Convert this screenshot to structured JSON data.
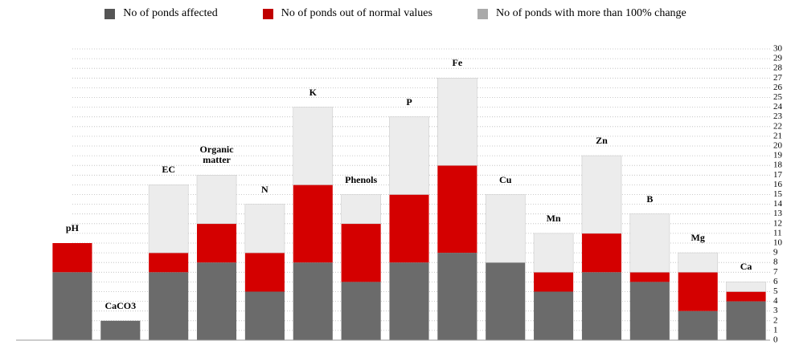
{
  "chart_data": {
    "type": "stacked_bar",
    "categories": [
      "pH",
      "CaCO3",
      "EC",
      "Organic matter",
      "N",
      "K",
      "Phenols",
      "P",
      "Fe",
      "Cu",
      "Mn",
      "Zn",
      "B",
      "Mg",
      "Ca"
    ],
    "series": [
      {
        "name": "No of ponds affected",
        "color": "#6b6b6b",
        "values": [
          7,
          2,
          7,
          8,
          5,
          8,
          6,
          8,
          9,
          8,
          5,
          7,
          6,
          3,
          4
        ]
      },
      {
        "name": "No of ponds out of normal values",
        "color": "#d40000",
        "values": [
          3,
          0,
          2,
          4,
          4,
          8,
          6,
          7,
          9,
          0,
          2,
          4,
          1,
          4,
          1
        ]
      },
      {
        "name": "No of ponds with more than 100% change",
        "color": "#ececec",
        "values": [
          0,
          0,
          7,
          5,
          5,
          8,
          3,
          8,
          9,
          7,
          4,
          8,
          6,
          2,
          1
        ]
      }
    ],
    "legend_colors": [
      "#555555",
      "#c00000",
      "#aaaaaa"
    ],
    "ylim": [
      0,
      30
    ],
    "yticks": [
      0,
      1,
      2,
      3,
      4,
      5,
      6,
      7,
      8,
      9,
      10,
      11,
      12,
      13,
      14,
      15,
      16,
      17,
      18,
      19,
      20,
      21,
      22,
      23,
      24,
      25,
      26,
      27,
      28,
      29,
      30
    ],
    "grid": true
  }
}
